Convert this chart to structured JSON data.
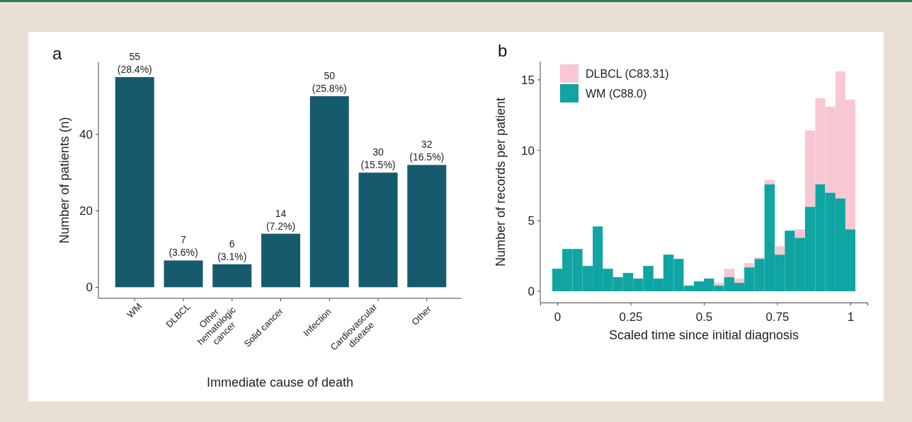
{
  "chart_data": [
    {
      "type": "bar",
      "title": "a",
      "xlabel": "Immediate cause of death",
      "ylabel": "Number of patients (n)",
      "categories": [
        "WM",
        "DLBCL",
        "Other hematologic cancer",
        "Solid cancer",
        "Infection",
        "Cardiovascular disease",
        "Other"
      ],
      "values": [
        55,
        7,
        6,
        14,
        50,
        30,
        32
      ],
      "value_labels": [
        "55\n(28.4%)",
        "7\n(3.6%)",
        "6\n(3.1%)",
        "14\n(7.2%)",
        "50\n(25.8%)",
        "30\n(15.5%)",
        "32\n(16.5%)"
      ],
      "color": "#165a6e",
      "ylim": [
        -2.9,
        58.9
      ],
      "yticks": [
        0,
        20,
        40
      ]
    },
    {
      "type": "bar",
      "title": "b",
      "xlabel": "Scaled time since initial diagnosis",
      "ylabel": "Number of records per patient",
      "stacked": true,
      "x": [
        0,
        0.034,
        0.069,
        0.103,
        0.138,
        0.172,
        0.207,
        0.241,
        0.276,
        0.31,
        0.345,
        0.379,
        0.414,
        0.448,
        0.483,
        0.517,
        0.552,
        0.586,
        0.621,
        0.655,
        0.69,
        0.724,
        0.759,
        0.793,
        0.828,
        0.862,
        0.897,
        0.931,
        0.966,
        1
      ],
      "series": [
        {
          "name": "WM (C88.0)",
          "color": "#0fa5a2",
          "values": [
            1.6,
            3,
            3,
            1.8,
            4.6,
            1.6,
            1,
            1.3,
            0.9,
            1.8,
            0.9,
            2.6,
            2.3,
            0.4,
            0.7,
            0.9,
            0.4,
            1,
            0.6,
            1.7,
            2.3,
            7.6,
            2.6,
            4.3,
            3.8,
            6,
            7.6,
            7,
            6.6,
            4.4
          ]
        },
        {
          "name": "DLBCL (C83.31)",
          "color": "#f8c8d2",
          "values": [
            0,
            0,
            0,
            0,
            0,
            0,
            0,
            0,
            0,
            0,
            0,
            0,
            0,
            0,
            0,
            0,
            0.2,
            0.6,
            0.3,
            0.3,
            0.1,
            0.3,
            0.6,
            0,
            0.6,
            5.4,
            6.1,
            6.1,
            9,
            9.2
          ]
        }
      ],
      "xlim": [
        -0.058,
        1.058
      ],
      "xticks": [
        0,
        0.25,
        0.5,
        0.75,
        1
      ],
      "ylim": [
        -0.8,
        16.3
      ],
      "yticks": [
        0,
        5,
        10,
        15
      ],
      "grid": false,
      "legend": "top left"
    }
  ]
}
